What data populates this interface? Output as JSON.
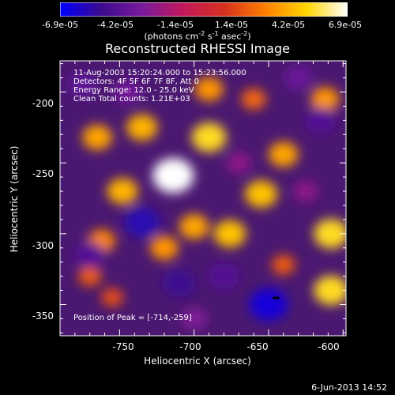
{
  "chart_data": {
    "type": "heatmap",
    "title": "Reconstructed RHESSI Image",
    "colorbar": {
      "colors": [
        "#0000ff",
        "#3b0a8f",
        "#7a1a9c",
        "#c2185b",
        "#d7301f",
        "#ff7f00",
        "#ffd500",
        "#ffffff"
      ],
      "ticks": [
        "-6.9e-05",
        "-4.2e-05",
        "-1.4e-05",
        "1.4e-05",
        "4.2e-05",
        "6.9e-05"
      ],
      "range": [
        -6.9e-05,
        6.9e-05
      ],
      "units_main": "(photons cm",
      "units_sup1": "-2",
      "units_mid": " s",
      "units_sup2": "-1",
      "units_end": " asec",
      "units_sup3": "-2",
      "units_close": ")"
    },
    "info": {
      "time": "11-Aug-2003 15:20:24.000 to 15:23:56.000",
      "detectors": "Detectors: 4F 5F 6F 7F 8F, Att 0",
      "energy": "Energy Range: 12.0 - 25.0 keV",
      "clean": "Clean     Total counts: 1.21E+03",
      "peak": "Position of Peak = [-714,-259]"
    },
    "xlabel": "Heliocentric X (arcsec)",
    "ylabel": "Heliocentric Y (arcsec)",
    "xlim": [
      -790,
      -598
    ],
    "ylim": [
      -372,
      -178
    ],
    "xticks": [
      "-750",
      "-700",
      "-650",
      "-600"
    ],
    "yticks": [
      "-200",
      "-250",
      "-300",
      "-350"
    ],
    "peak": [
      -714,
      -259
    ],
    "features": [
      {
        "x": -714,
        "y": -259,
        "level": 1.0
      },
      {
        "x": -690,
        "y": -232,
        "level": 0.75
      },
      {
        "x": -735,
        "y": -225,
        "level": 0.6
      },
      {
        "x": -748,
        "y": -270,
        "level": 0.6
      },
      {
        "x": -765,
        "y": -232,
        "level": 0.55
      },
      {
        "x": -640,
        "y": -244,
        "level": 0.55
      },
      {
        "x": -655,
        "y": -272,
        "level": 0.65
      },
      {
        "x": -676,
        "y": -300,
        "level": 0.65
      },
      {
        "x": -700,
        "y": -295,
        "level": 0.55
      },
      {
        "x": -720,
        "y": -310,
        "level": 0.5
      },
      {
        "x": -762,
        "y": -305,
        "level": 0.45
      },
      {
        "x": -608,
        "y": -300,
        "level": 0.75
      },
      {
        "x": -608,
        "y": -340,
        "level": 0.75
      },
      {
        "x": -612,
        "y": -205,
        "level": 0.5
      },
      {
        "x": -690,
        "y": -198,
        "level": 0.5
      },
      {
        "x": -660,
        "y": -205,
        "level": 0.35
      },
      {
        "x": -770,
        "y": -330,
        "level": 0.3
      },
      {
        "x": -640,
        "y": -322,
        "level": 0.3
      },
      {
        "x": -755,
        "y": -345,
        "level": 0.25
      },
      {
        "x": -735,
        "y": -292,
        "level": -0.8
      },
      {
        "x": -770,
        "y": -315,
        "level": -0.6
      },
      {
        "x": -650,
        "y": -350,
        "level": -0.9
      },
      {
        "x": -710,
        "y": -335,
        "level": -0.7
      },
      {
        "x": -680,
        "y": -330,
        "level": -0.6
      },
      {
        "x": -615,
        "y": -220,
        "level": -0.6
      },
      {
        "x": -630,
        "y": -190,
        "level": -0.5
      },
      {
        "x": -775,
        "y": -195,
        "level": -0.55
      },
      {
        "x": -745,
        "y": -200,
        "level": -0.45
      },
      {
        "x": -670,
        "y": -250,
        "level": -0.35
      },
      {
        "x": -700,
        "y": -360,
        "level": -0.4
      },
      {
        "x": -625,
        "y": -270,
        "level": -0.35
      }
    ]
  },
  "footer": {
    "timestamp": "6-Jun-2013 14:52"
  }
}
